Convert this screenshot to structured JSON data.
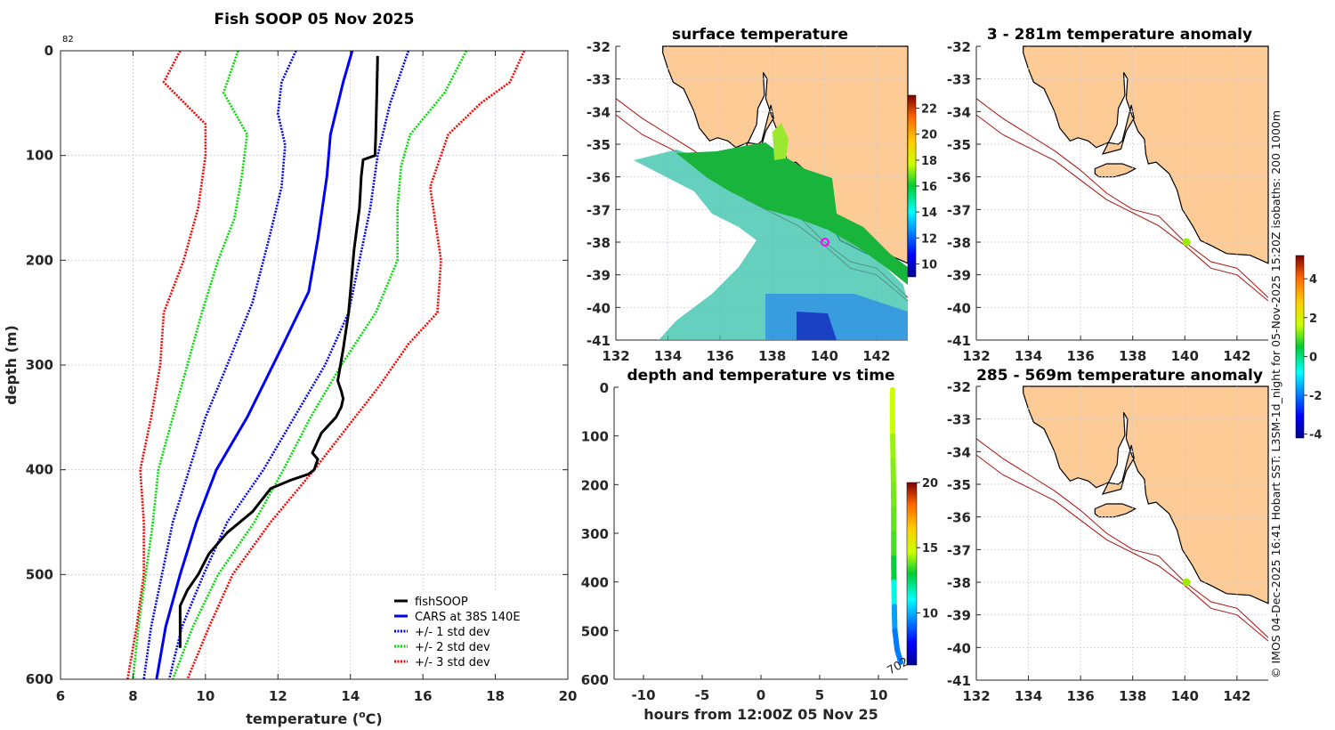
{
  "chart_data": [
    {
      "id": "profile",
      "type": "line",
      "title": "Fish SOOP 05 Nov 2025",
      "annotation": "82",
      "xlabel": "temperature (oC)",
      "xlabel_parts": {
        "pre": "temperature (",
        "sup": "o",
        "post": "C)"
      },
      "ylabel": "depth (m)",
      "xlim": [
        6,
        20
      ],
      "ylim": [
        600,
        0
      ],
      "xticks": [
        6,
        8,
        10,
        12,
        14,
        16,
        18,
        20
      ],
      "yticks": [
        0,
        100,
        200,
        300,
        400,
        500,
        600
      ],
      "grid": true,
      "legend_position": "bottom-right",
      "legend": [
        {
          "label": "fishSOOP",
          "color": "#000000",
          "style": "solid"
        },
        {
          "label": "CARS at 38S 140E",
          "color": "#0000ff",
          "style": "solid"
        },
        {
          "label": "+/- 1 std dev",
          "color": "#0000ff",
          "style": "dotted"
        },
        {
          "label": "+/- 2 std dev",
          "color": "#00dd00",
          "style": "dotted"
        },
        {
          "label": "+/- 3 std dev",
          "color": "#ff0000",
          "style": "dotted"
        }
      ],
      "series": [
        {
          "name": "fishSOOP",
          "color": "#000000",
          "style": "solid",
          "depth": [
            5,
            40,
            80,
            100,
            104,
            120,
            150,
            190,
            250,
            285,
            315,
            325,
            332,
            340,
            350,
            365,
            384,
            390,
            400,
            404,
            410,
            418,
            440,
            460,
            480,
            500,
            515,
            530,
            570
          ],
          "temp": [
            14.75,
            14.73,
            14.7,
            14.68,
            14.35,
            14.3,
            14.25,
            14.1,
            13.95,
            13.8,
            13.65,
            13.75,
            13.8,
            13.75,
            13.6,
            13.2,
            12.95,
            13.1,
            13.0,
            12.85,
            12.35,
            11.8,
            11.3,
            10.6,
            10.1,
            9.8,
            9.5,
            9.3,
            9.3
          ]
        },
        {
          "name": "CARS at 38S 140E",
          "color": "#0000ff",
          "style": "solid",
          "depth": [
            0,
            30,
            80,
            120,
            180,
            230,
            280,
            350,
            400,
            450,
            500,
            550,
            600
          ],
          "temp": [
            14.05,
            13.8,
            13.45,
            13.35,
            13.1,
            12.85,
            12.15,
            11.15,
            10.3,
            9.75,
            9.3,
            8.9,
            8.65
          ]
        },
        {
          "name": "-1 std dev",
          "color": "#0000ff",
          "style": "dotted",
          "depth": [
            0,
            30,
            60,
            90,
            130,
            180,
            240,
            300,
            350,
            400,
            450,
            500,
            550,
            600
          ],
          "temp": [
            12.5,
            12.1,
            12.0,
            12.2,
            12.1,
            11.75,
            11.3,
            10.6,
            10.0,
            9.55,
            9.1,
            8.8,
            8.5,
            8.3
          ]
        },
        {
          "name": "+1 std dev",
          "color": "#0000ff",
          "style": "dotted",
          "depth": [
            0,
            50,
            100,
            150,
            200,
            250,
            300,
            350,
            400,
            450,
            500,
            550,
            600
          ],
          "temp": [
            15.6,
            15.1,
            14.75,
            14.55,
            14.25,
            13.95,
            13.3,
            12.45,
            11.6,
            10.6,
            9.95,
            9.35,
            9.0
          ]
        },
        {
          "name": "-2 std dev",
          "color": "#00dd00",
          "style": "dotted",
          "depth": [
            0,
            40,
            80,
            120,
            160,
            200,
            250,
            300,
            350,
            400,
            450,
            500,
            550,
            600
          ],
          "temp": [
            10.9,
            10.5,
            11.15,
            11.0,
            10.8,
            10.35,
            9.9,
            9.5,
            9.1,
            8.7,
            8.55,
            8.35,
            8.15,
            8.0
          ]
        },
        {
          "name": "+2 std dev",
          "color": "#00dd00",
          "style": "dotted",
          "depth": [
            0,
            40,
            80,
            110,
            150,
            200,
            250,
            300,
            350,
            400,
            450,
            500,
            550,
            600
          ],
          "temp": [
            17.2,
            16.6,
            15.65,
            15.4,
            15.3,
            15.3,
            14.7,
            13.75,
            12.9,
            12.15,
            11.35,
            10.35,
            9.65,
            9.1
          ]
        },
        {
          "name": "-3 std dev",
          "color": "#ff0000",
          "style": "dotted",
          "depth": [
            0,
            30,
            70,
            100,
            150,
            200,
            250,
            300,
            350,
            400,
            450,
            500,
            550,
            600
          ],
          "temp": [
            9.3,
            8.85,
            10.0,
            10.0,
            9.8,
            9.4,
            8.85,
            8.75,
            8.5,
            8.2,
            8.3,
            8.3,
            8.1,
            7.85
          ]
        },
        {
          "name": "+3 std dev",
          "color": "#ff0000",
          "style": "dotted",
          "depth": [
            0,
            30,
            50,
            80,
            130,
            200,
            250,
            280,
            320,
            360,
            400,
            450,
            500,
            550,
            600
          ],
          "temp": [
            18.8,
            18.4,
            17.6,
            16.7,
            16.2,
            16.5,
            16.4,
            15.6,
            14.8,
            13.9,
            13.0,
            11.8,
            10.75,
            10.1,
            9.5
          ]
        }
      ]
    },
    {
      "id": "surface-map",
      "type": "heatmap",
      "title": "surface temperature",
      "xlim": [
        132,
        143.2
      ],
      "ylim": [
        -41,
        -32
      ],
      "xticks": [
        132,
        134,
        136,
        138,
        140,
        142
      ],
      "yticks": [
        -32,
        -33,
        -34,
        -35,
        -36,
        -37,
        -38,
        -39,
        -40,
        -41
      ],
      "colorbar": {
        "range": [
          9,
          23
        ],
        "ticks": [
          10,
          12,
          14,
          16,
          18,
          20,
          22
        ]
      },
      "marker": {
        "lon": 140,
        "lat": -38,
        "style": "circle",
        "color": "#ff00ff"
      }
    },
    {
      "id": "depth-time",
      "type": "scatter",
      "title": "depth and temperature vs time",
      "xlabel": "hours from 12:00Z 05 Nov 25",
      "xlim": [
        -12.5,
        12.5
      ],
      "ylim": [
        600,
        0
      ],
      "xticks": [
        -10,
        -5,
        0,
        5,
        10
      ],
      "yticks": [
        0,
        100,
        200,
        300,
        400,
        500,
        600
      ],
      "colorbar": {
        "range": [
          6,
          20
        ],
        "ticks": [
          10,
          15,
          20
        ]
      },
      "annotation": "702",
      "points": {
        "hours": [
          11.2,
          11.2,
          11.22,
          11.25,
          11.28,
          11.3,
          11.3,
          11.3,
          11.32,
          11.35,
          11.4,
          11.6,
          11.9
        ],
        "depth": [
          5,
          50,
          100,
          150,
          200,
          250,
          300,
          350,
          400,
          450,
          500,
          540,
          565
        ],
        "temp": [
          14.75,
          14.7,
          14.68,
          14.25,
          14.1,
          13.95,
          13.8,
          13.6,
          12.9,
          11.3,
          9.8,
          9.3,
          9.3
        ]
      }
    },
    {
      "id": "anomaly-shallow",
      "type": "heatmap",
      "title": "3 - 281m temperature anomaly",
      "xlim": [
        132,
        143.2
      ],
      "ylim": [
        -41,
        -32
      ],
      "xticks": [
        132,
        134,
        136,
        138,
        140,
        142
      ],
      "yticks": [
        -32,
        -33,
        -34,
        -35,
        -36,
        -37,
        -38,
        -39,
        -40,
        -41
      ],
      "marker": {
        "lon": 140,
        "lat": -38,
        "anomaly": 1.4
      }
    },
    {
      "id": "anomaly-deep",
      "type": "heatmap",
      "title": "285 - 569m temperature anomaly",
      "xlim": [
        132,
        143.2
      ],
      "ylim": [
        -41,
        -32
      ],
      "xticks": [
        132,
        134,
        136,
        138,
        140,
        142
      ],
      "yticks": [
        -32,
        -33,
        -34,
        -35,
        -36,
        -37,
        -38,
        -39,
        -40,
        -41
      ],
      "marker": {
        "lon": 140,
        "lat": -38,
        "anomaly": 1.4
      }
    }
  ],
  "anomaly_colorbar": {
    "range": [
      -4.2,
      5.2
    ],
    "ticks": [
      -4,
      -2,
      0,
      2,
      4
    ]
  },
  "credit": "© IMOS 04-Dec-2025 16:41 Hobart SST: L3SM-1d_night for 05-Nov-2025 15:20Z isobaths: 200  1000m",
  "colors": {
    "land": "#fccb96",
    "isobath": "#b01010",
    "grid": "#c8c8dc"
  }
}
